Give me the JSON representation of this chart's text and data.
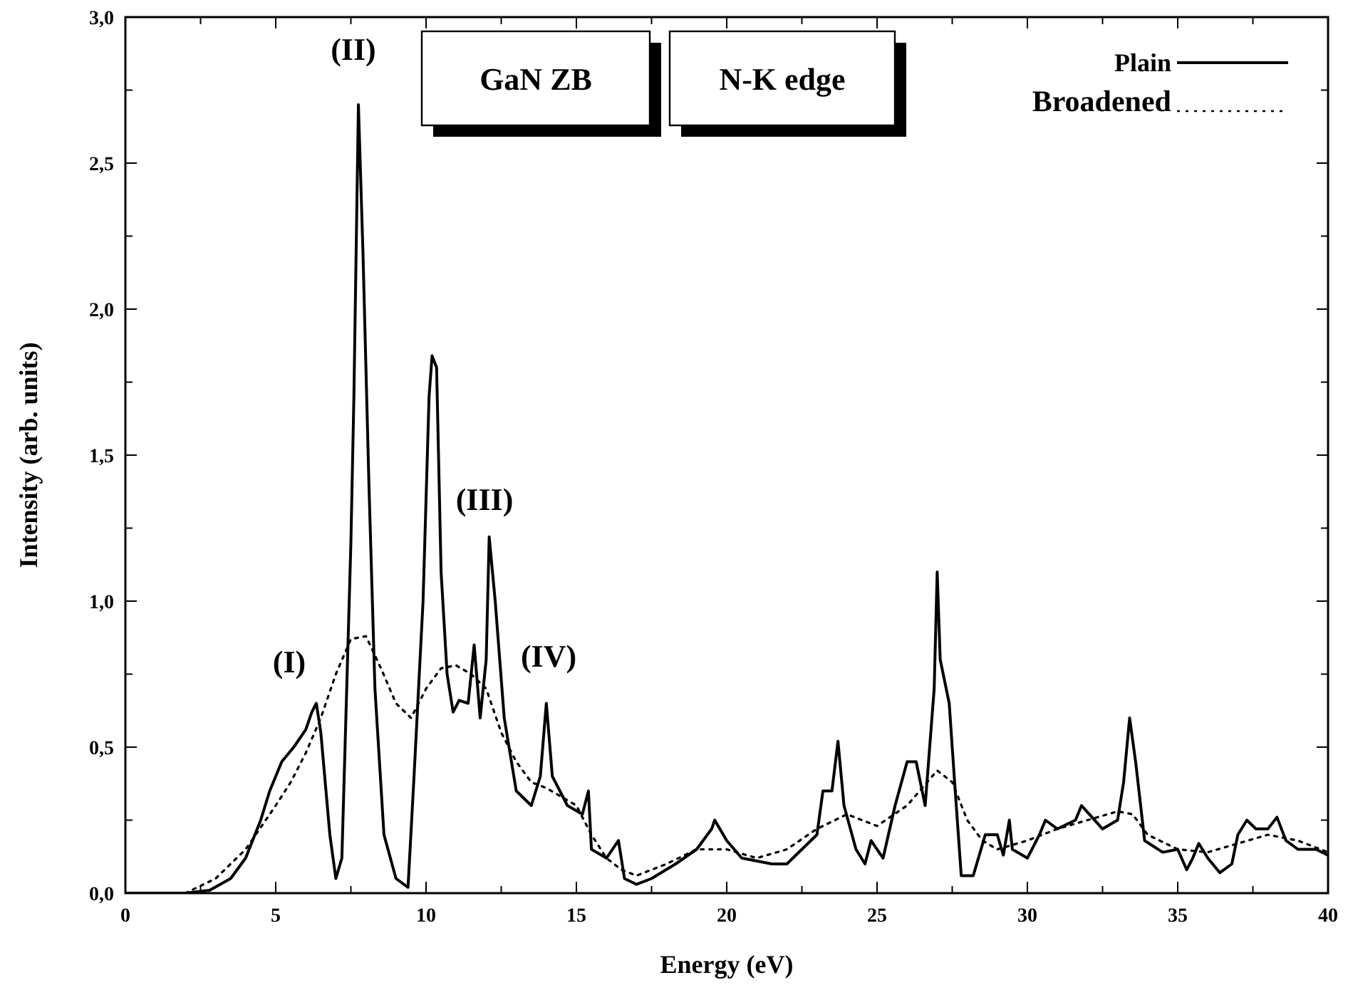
{
  "chart_data": {
    "type": "line",
    "xlabel": "Energy (eV)",
    "ylabel": "Intensity (arb. units)",
    "xlim": [
      0,
      40
    ],
    "ylim": [
      0,
      3
    ],
    "xticks": [
      0,
      {
        "value": 2.5,
        "label": null
      },
      5,
      {
        "value": 7.5,
        "label": null
      },
      10,
      {
        "value": 12.5,
        "label": null
      },
      15,
      {
        "value": 17.5,
        "label": null
      },
      20,
      {
        "value": 22.5,
        "label": null
      },
      25,
      {
        "value": 27.5,
        "label": null
      },
      30,
      {
        "value": 32.5,
        "label": null
      },
      35,
      {
        "value": 37.5,
        "label": null
      },
      40
    ],
    "yticks": [
      {
        "value": 0,
        "label": "0,0"
      },
      {
        "value": 0.25,
        "label": null
      },
      {
        "value": 0.5,
        "label": "0,5"
      },
      {
        "value": 0.75,
        "label": null
      },
      {
        "value": 1,
        "label": "1,0"
      },
      {
        "value": 1.25,
        "label": null
      },
      {
        "value": 1.5,
        "label": "1,5"
      },
      {
        "value": 1.75,
        "label": null
      },
      {
        "value": 2,
        "label": "2,0"
      },
      {
        "value": 2.25,
        "label": null
      },
      {
        "value": 2.5,
        "label": "2,5"
      },
      {
        "value": 2.75,
        "label": null
      },
      {
        "value": 3,
        "label": "3,0"
      }
    ],
    "grid": false,
    "legend": "top right",
    "annotations": [
      "GaN ZB",
      "N-K edge",
      "(I)",
      "(II)",
      "(III)",
      "(IV)"
    ],
    "series": [
      {
        "name": "Plain",
        "color": "#000000",
        "line_style": "solid",
        "x": [
          0,
          2,
          2.8,
          3.5,
          4,
          4.5,
          4.8,
          5.2,
          5.6,
          6,
          6.2,
          6.35,
          6.5,
          6.8,
          7,
          7.2,
          7.5,
          7.6,
          7.75,
          7.9,
          8.1,
          8.3,
          8.6,
          9,
          9.4,
          9.6,
          9.9,
          10.1,
          10.2,
          10.35,
          10.5,
          10.7,
          10.9,
          11.1,
          11.4,
          11.6,
          11.8,
          12,
          12.1,
          12.3,
          12.6,
          13,
          13.5,
          13.8,
          14,
          14.2,
          14.7,
          15.2,
          15.4,
          15.5,
          16,
          16.4,
          16.6,
          17,
          17.5,
          18.3,
          19,
          19.5,
          19.6,
          20,
          20.5,
          21.5,
          22,
          22.5,
          23,
          23.2,
          23.5,
          23.7,
          23.9,
          24.3,
          24.6,
          24.8,
          25.2,
          25.6,
          26,
          26.3,
          26.6,
          26.9,
          27,
          27.1,
          27.4,
          27.6,
          27.8,
          28.2,
          28.6,
          29,
          29.2,
          29.4,
          29.5,
          30,
          30.4,
          30.6,
          31,
          31.6,
          31.8,
          32.5,
          33,
          33.2,
          33.4,
          33.6,
          33.9,
          34.5,
          35,
          35.3,
          35.5,
          35.7,
          36,
          36.4,
          36.8,
          37,
          37.3,
          37.6,
          38,
          38.3,
          38.6,
          39,
          39.6,
          40
        ],
        "values": [
          0,
          0,
          0.01,
          0.05,
          0.12,
          0.25,
          0.35,
          0.45,
          0.5,
          0.56,
          0.62,
          0.65,
          0.55,
          0.2,
          0.05,
          0.12,
          1.2,
          1.7,
          2.7,
          2.2,
          1.4,
          0.7,
          0.2,
          0.05,
          0.02,
          0.4,
          1,
          1.7,
          1.84,
          1.8,
          1.1,
          0.75,
          0.62,
          0.66,
          0.65,
          0.85,
          0.6,
          0.8,
          1.22,
          1,
          0.6,
          0.35,
          0.3,
          0.4,
          0.65,
          0.4,
          0.3,
          0.27,
          0.35,
          0.15,
          0.12,
          0.18,
          0.05,
          0.03,
          0.05,
          0.1,
          0.15,
          0.22,
          0.25,
          0.18,
          0.12,
          0.1,
          0.1,
          0.15,
          0.2,
          0.35,
          0.35,
          0.52,
          0.3,
          0.15,
          0.1,
          0.18,
          0.12,
          0.3,
          0.45,
          0.45,
          0.3,
          0.7,
          1.1,
          0.8,
          0.65,
          0.35,
          0.06,
          0.06,
          0.2,
          0.2,
          0.13,
          0.25,
          0.15,
          0.12,
          0.2,
          0.25,
          0.22,
          0.25,
          0.3,
          0.22,
          0.25,
          0.38,
          0.6,
          0.45,
          0.18,
          0.14,
          0.15,
          0.08,
          0.12,
          0.17,
          0.12,
          0.07,
          0.1,
          0.2,
          0.25,
          0.22,
          0.22,
          0.26,
          0.18,
          0.15,
          0.15,
          0.13
        ]
      },
      {
        "name": "Broadened",
        "color": "#000000",
        "line_style": "dotted",
        "x": [
          0,
          2,
          3,
          4,
          5,
          5.5,
          6,
          6.5,
          7,
          7.5,
          8,
          8.5,
          9,
          9.5,
          10,
          10.5,
          11,
          11.5,
          12,
          12.5,
          13,
          13.5,
          14,
          15,
          15.5,
          16,
          16.5,
          17,
          18,
          19,
          20,
          21,
          22,
          23,
          24,
          25,
          26,
          27,
          27.5,
          28,
          28.5,
          29,
          30,
          31,
          32,
          33,
          33.5,
          34,
          35,
          36,
          37,
          38,
          39,
          40
        ],
        "values": [
          0,
          0,
          0.05,
          0.15,
          0.3,
          0.38,
          0.48,
          0.6,
          0.75,
          0.87,
          0.88,
          0.77,
          0.65,
          0.6,
          0.7,
          0.77,
          0.78,
          0.75,
          0.7,
          0.55,
          0.45,
          0.38,
          0.36,
          0.3,
          0.2,
          0.12,
          0.08,
          0.06,
          0.1,
          0.15,
          0.15,
          0.12,
          0.15,
          0.22,
          0.27,
          0.23,
          0.3,
          0.42,
          0.38,
          0.25,
          0.18,
          0.15,
          0.18,
          0.22,
          0.25,
          0.28,
          0.27,
          0.2,
          0.15,
          0.14,
          0.17,
          0.2,
          0.18,
          0.14
        ]
      }
    ]
  }
}
